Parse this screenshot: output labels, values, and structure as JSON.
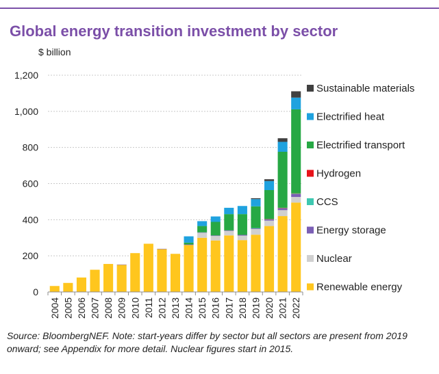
{
  "header": {
    "title": "Global energy transition investment by sector",
    "unit": "$ billion"
  },
  "footer": {
    "source": "Source: BloombergNEF. Note: start-years differ by sector but all sectors are present from 2019 onward; see Appendix for more detail. Nuclear figures start in 2015."
  },
  "colors": {
    "title": "#7b4fa8",
    "rule": "#7b4fa8",
    "gridline": "#c8c8c8"
  },
  "chart_data": {
    "type": "bar",
    "stacked": true,
    "title": "Global energy transition investment by sector",
    "ylabel": "$ billion",
    "ylim": [
      0,
      1200
    ],
    "yticks": [
      0,
      200,
      400,
      600,
      800,
      1000,
      1200
    ],
    "ytick_labels": [
      "0",
      "200",
      "400",
      "600",
      "800",
      "1,000",
      "1,200"
    ],
    "grid": true,
    "legend_position": "right",
    "categories": [
      "2004",
      "2005",
      "2006",
      "2007",
      "2008",
      "2009",
      "2010",
      "2011",
      "2012",
      "2013",
      "2014",
      "2015",
      "2016",
      "2017",
      "2018",
      "2019",
      "2020",
      "2021",
      "2022"
    ],
    "series": [
      {
        "name": "Renewable energy",
        "color": "#ffc61e",
        "values": [
          33,
          50,
          80,
          123,
          155,
          150,
          215,
          267,
          237,
          211,
          260,
          300,
          285,
          313,
          287,
          317,
          365,
          420,
          495
        ]
      },
      {
        "name": "Nuclear",
        "color": "#d0d0d0",
        "values": [
          0,
          0,
          0,
          0,
          0,
          0,
          0,
          0,
          0,
          0,
          0,
          28,
          25,
          25,
          25,
          32,
          30,
          33,
          31
        ]
      },
      {
        "name": "Energy storage",
        "color": "#7b5fb5",
        "values": [
          0,
          0,
          0,
          0,
          0,
          2,
          0,
          0,
          2,
          0,
          3,
          2,
          3,
          3,
          4,
          4,
          6,
          10,
          16
        ]
      },
      {
        "name": "CCS",
        "color": "#3ec8b0",
        "values": [
          0,
          0,
          0,
          0,
          0,
          0,
          0,
          0,
          0,
          0,
          0,
          0,
          0,
          0,
          0,
          1,
          2,
          2,
          3
        ]
      },
      {
        "name": "Hydrogen",
        "color": "#e8131a",
        "values": [
          0,
          0,
          0,
          0,
          0,
          0,
          0,
          0,
          0,
          0,
          0,
          0,
          0,
          0,
          0,
          0,
          1,
          1,
          1
        ]
      },
      {
        "name": "Electrified transport",
        "color": "#27a844",
        "values": [
          0,
          0,
          0,
          0,
          0,
          0,
          0,
          0,
          0,
          0,
          10,
          35,
          75,
          90,
          115,
          120,
          160,
          310,
          465
        ]
      },
      {
        "name": "Electrified heat",
        "color": "#1fa2df",
        "values": [
          0,
          0,
          0,
          0,
          0,
          0,
          0,
          0,
          0,
          0,
          35,
          27,
          30,
          35,
          45,
          40,
          50,
          55,
          65
        ]
      },
      {
        "name": "Sustainable materials",
        "color": "#404040",
        "values": [
          0,
          0,
          0,
          0,
          0,
          0,
          0,
          0,
          0,
          0,
          0,
          0,
          0,
          0,
          0,
          5,
          10,
          20,
          35
        ]
      }
    ]
  }
}
